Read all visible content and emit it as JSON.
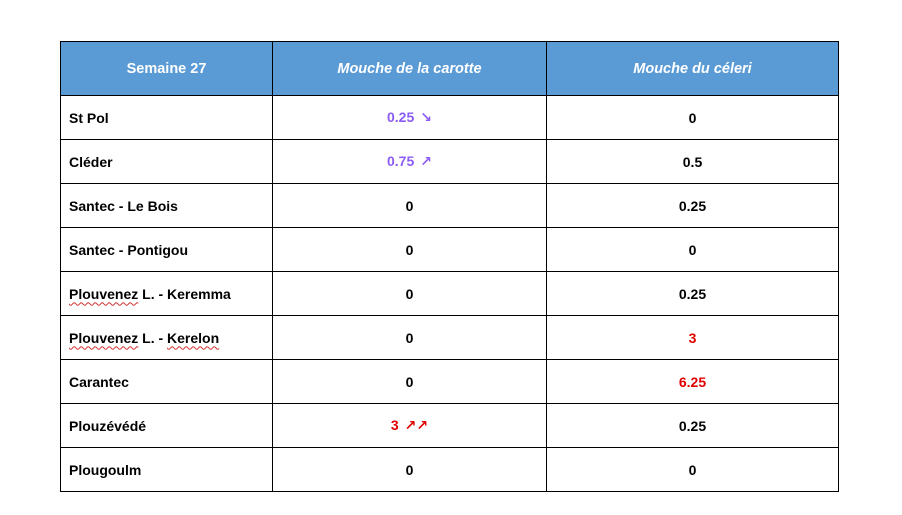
{
  "table": {
    "headers": [
      "Semaine 27",
      "Mouche de la carotte",
      "Mouche du céleri"
    ],
    "rows": [
      {
        "site": [
          {
            "text": "St Pol",
            "spell": false
          }
        ],
        "carotte": {
          "value": "0.25",
          "arrow": "↘",
          "color": "#8b5cf6"
        },
        "celeri": {
          "value": "0",
          "arrow": "",
          "color": "#000000"
        }
      },
      {
        "site": [
          {
            "text": "Cléder",
            "spell": false
          }
        ],
        "carotte": {
          "value": "0.75",
          "arrow": "↗",
          "color": "#8b5cf6"
        },
        "celeri": {
          "value": "0.5",
          "arrow": "",
          "color": "#000000"
        }
      },
      {
        "site": [
          {
            "text": "Santec - Le Bois",
            "spell": false
          }
        ],
        "carotte": {
          "value": "0",
          "arrow": "",
          "color": "#000000"
        },
        "celeri": {
          "value": "0.25",
          "arrow": "",
          "color": "#000000"
        }
      },
      {
        "site": [
          {
            "text": "Santec - Pontigou",
            "spell": false
          }
        ],
        "carotte": {
          "value": "0",
          "arrow": "",
          "color": "#000000"
        },
        "celeri": {
          "value": "0",
          "arrow": "",
          "color": "#000000"
        }
      },
      {
        "site": [
          {
            "text": "Plouvenez",
            "spell": true
          },
          {
            "text": " L. - Keremma",
            "spell": false
          }
        ],
        "carotte": {
          "value": "0",
          "arrow": "",
          "color": "#000000"
        },
        "celeri": {
          "value": "0.25",
          "arrow": "",
          "color": "#000000"
        }
      },
      {
        "site": [
          {
            "text": "Plouvenez",
            "spell": true
          },
          {
            "text": " L. - ",
            "spell": false
          },
          {
            "text": "Kerelon",
            "spell": true
          }
        ],
        "carotte": {
          "value": "0",
          "arrow": "",
          "color": "#000000"
        },
        "celeri": {
          "value": "3",
          "arrow": "",
          "color": "#e00000"
        }
      },
      {
        "site": [
          {
            "text": "Carantec",
            "spell": false
          }
        ],
        "carotte": {
          "value": "0",
          "arrow": "",
          "color": "#000000"
        },
        "celeri": {
          "value": "6.25",
          "arrow": "",
          "color": "#e00000"
        }
      },
      {
        "site": [
          {
            "text": "Plouzévédé",
            "spell": false
          }
        ],
        "carotte": {
          "value": "3",
          "arrow": "↗↗",
          "color": "#e00000"
        },
        "celeri": {
          "value": "0.25",
          "arrow": "",
          "color": "#000000"
        }
      },
      {
        "site": [
          {
            "text": "Plougoulm",
            "spell": false
          }
        ],
        "carotte": {
          "value": "0",
          "arrow": "",
          "color": "#000000"
        },
        "celeri": {
          "value": "0",
          "arrow": "",
          "color": "#000000"
        }
      }
    ]
  }
}
